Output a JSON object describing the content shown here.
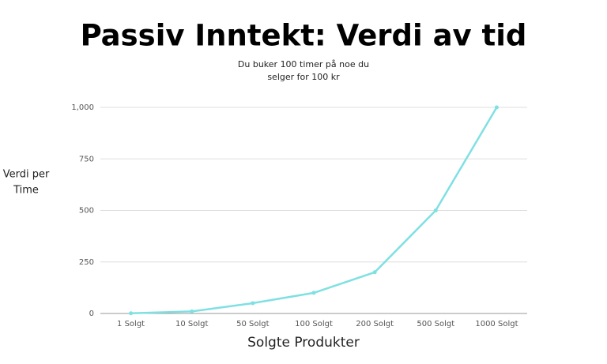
{
  "chart_data": {
    "type": "line",
    "title": "Passiv Inntekt: Verdi av tid",
    "subtitle": [
      "Du buker 100 timer på noe du",
      "selger for 100 kr"
    ],
    "y_label": [
      "Verdi per",
      "Time"
    ],
    "x_label": "Solgte Produkter",
    "categories": [
      "1 Solgt",
      "10 Solgt",
      "50 Solgt",
      "100 Solgt",
      "200 Solgt",
      "500 Solgt",
      "1000 Solgt"
    ],
    "values": [
      1,
      10,
      50,
      100,
      200,
      500,
      1000
    ],
    "color": "#7fe0e3",
    "ylim": [
      0,
      1000
    ],
    "yticks": [
      0,
      250,
      500,
      750,
      {
        "value": 1000,
        "label": "1,000"
      }
    ],
    "grid": true
  }
}
